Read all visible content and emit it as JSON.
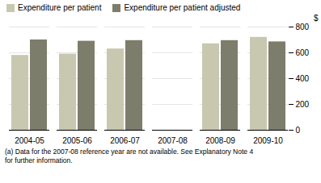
{
  "chart_data": {
    "type": "bar",
    "categories": [
      "2004-05",
      "2005-06",
      "2006-07",
      "2007-08",
      "2008-09",
      "2009-10"
    ],
    "series": [
      {
        "name": "Expenditure per patient",
        "color": "#c8c8b0",
        "values": [
          580,
          590,
          630,
          0,
          670,
          720
        ]
      },
      {
        "name": "Expenditure per patient adjusted",
        "color": "#7d7d6b",
        "values": [
          700,
          690,
          695,
          0,
          695,
          685
        ]
      }
    ],
    "ylabel": "$",
    "ylim": [
      0,
      800
    ],
    "yticks": [
      0,
      200,
      400,
      600,
      800
    ],
    "grid": true,
    "legend": "upper left",
    "footnote": "(a) Data for the 2007-08 reference year are not available. See Explanatory Note 4\nfor further information."
  }
}
